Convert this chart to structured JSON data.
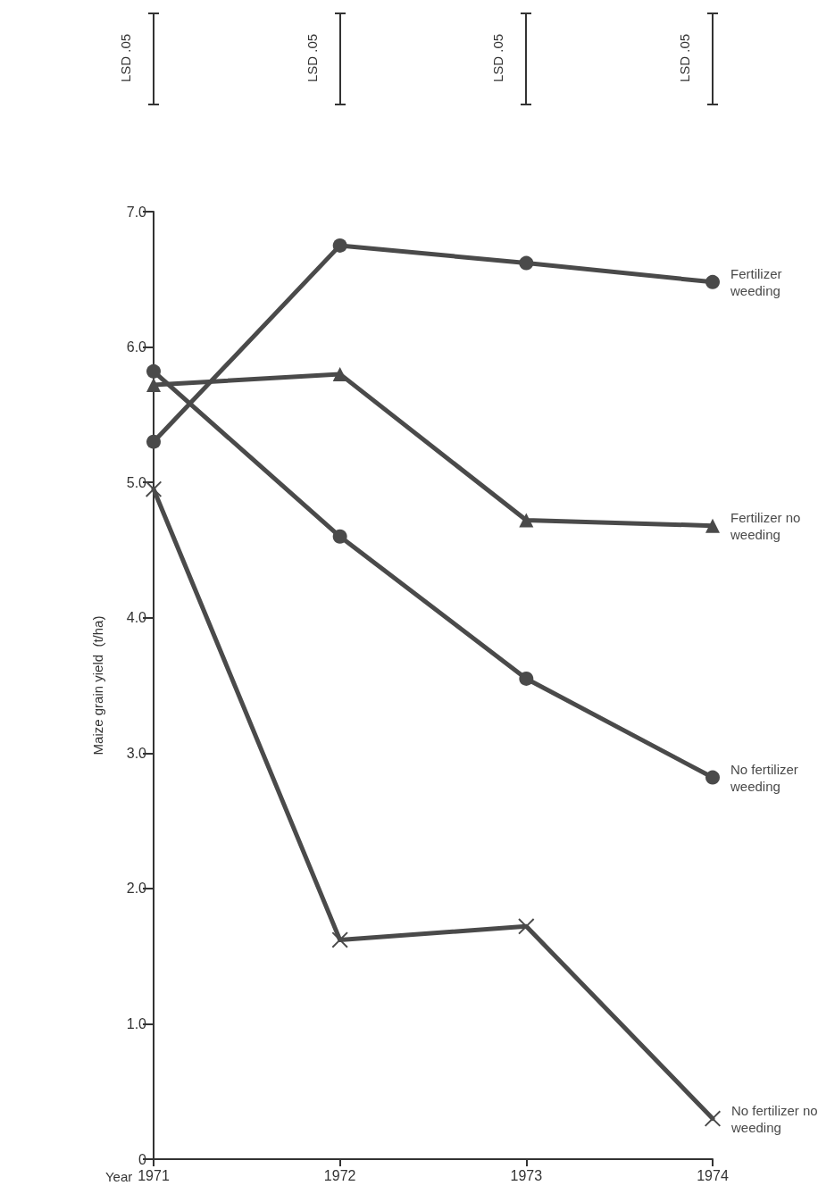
{
  "chart_data": {
    "type": "line",
    "categories": [
      "1971",
      "1972",
      "1973",
      "1974"
    ],
    "xlabel": "Year",
    "ylabel": "Maize grain yield  (t/ha)",
    "ylim": [
      0,
      7.0
    ],
    "yticks": [
      0,
      {
        "value": 1,
        "label": "1.0"
      },
      {
        "value": 2,
        "label": "2.0"
      },
      {
        "value": 3,
        "label": "3.0"
      },
      {
        "value": 4,
        "label": "4.0"
      },
      {
        "value": 5,
        "label": "5.0"
      },
      {
        "value": 6,
        "label": "6.0"
      },
      {
        "value": 7,
        "label": "7.0"
      }
    ],
    "grid": false,
    "legend": false,
    "series": [
      {
        "name": "Fertilizer weeding",
        "color": "#4a4a4a",
        "marker": "circle",
        "values": [
          5.3,
          6.75,
          6.62,
          6.48
        ]
      },
      {
        "name": "Fertilizer no weeding",
        "color": "#4a4a4a",
        "marker": "triangle",
        "values": [
          5.72,
          5.8,
          4.72,
          4.68
        ]
      },
      {
        "name": "No fertilizer weeding",
        "color": "#4a4a4a",
        "marker": "circle",
        "values": [
          5.82,
          4.6,
          3.55,
          2.82
        ]
      },
      {
        "name": "No fertilizer no weeding",
        "color": "#4a4a4a",
        "marker": "cross",
        "values": [
          4.95,
          1.62,
          1.72,
          0.3
        ]
      }
    ],
    "annotations": [
      "LSD .05",
      "LSD .05",
      "LSD .05",
      "LSD .05"
    ]
  }
}
